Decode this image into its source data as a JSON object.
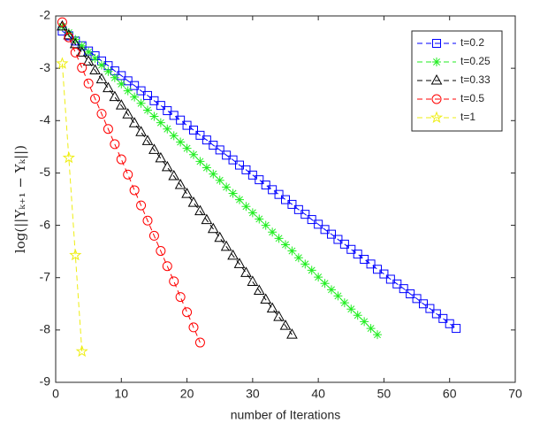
{
  "chart_data": {
    "type": "line",
    "xlabel": "number of Iterations",
    "ylabel": "log(||Yₖ₊₁ − Yₖ||)",
    "xlim": [
      0,
      70
    ],
    "xticks": [
      0,
      10,
      20,
      30,
      40,
      50,
      60,
      70
    ],
    "ylim": [
      -9,
      -2
    ],
    "yticks": [
      -2,
      -3,
      -4,
      -5,
      -6,
      -7,
      -8,
      -9
    ],
    "grid": false,
    "legend": "northeast",
    "series": [
      {
        "name": "t=0.2",
        "color": "#0000ff",
        "marker": "square",
        "x": [
          1,
          2,
          3,
          4,
          5,
          6,
          7,
          8,
          9,
          10,
          11,
          12,
          13,
          14,
          15,
          16,
          17,
          18,
          19,
          20,
          21,
          22,
          23,
          24,
          25,
          26,
          27,
          28,
          29,
          30,
          31,
          32,
          33,
          34,
          35,
          36,
          37,
          38,
          39,
          40,
          41,
          42,
          43,
          44,
          45,
          46,
          47,
          48,
          49,
          50,
          51,
          52,
          53,
          54,
          55,
          56,
          57,
          58,
          59,
          60,
          61
        ],
        "values": [
          -2.29,
          -2.38,
          -2.48,
          -2.57,
          -2.67,
          -2.76,
          -2.86,
          -2.95,
          -3.05,
          -3.14,
          -3.24,
          -3.33,
          -3.43,
          -3.52,
          -3.62,
          -3.71,
          -3.81,
          -3.9,
          -3.99,
          -4.09,
          -4.18,
          -4.28,
          -4.37,
          -4.47,
          -4.56,
          -4.66,
          -4.75,
          -4.85,
          -4.94,
          -5.04,
          -5.13,
          -5.23,
          -5.32,
          -5.41,
          -5.51,
          -5.6,
          -5.7,
          -5.79,
          -5.89,
          -5.98,
          -6.08,
          -6.17,
          -6.27,
          -6.36,
          -6.46,
          -6.55,
          -6.65,
          -6.74,
          -6.84,
          -6.93,
          -7.03,
          -7.12,
          -7.21,
          -7.31,
          -7.4,
          -7.5,
          -7.59,
          -7.69,
          -7.78,
          -7.88,
          -7.97
        ]
      },
      {
        "name": "t=0.25",
        "color": "#22ee22",
        "marker": "star",
        "x": [
          1,
          2,
          3,
          4,
          5,
          6,
          7,
          8,
          9,
          10,
          11,
          12,
          13,
          14,
          15,
          16,
          17,
          18,
          19,
          20,
          21,
          22,
          23,
          24,
          25,
          26,
          27,
          28,
          29,
          30,
          31,
          32,
          33,
          34,
          35,
          36,
          37,
          38,
          39,
          40,
          41,
          42,
          43,
          44,
          45,
          46,
          47,
          48,
          49
        ],
        "values": [
          -2.2,
          -2.32,
          -2.45,
          -2.57,
          -2.69,
          -2.81,
          -2.94,
          -3.06,
          -3.18,
          -3.3,
          -3.43,
          -3.55,
          -3.67,
          -3.8,
          -3.92,
          -4.04,
          -4.16,
          -4.29,
          -4.41,
          -4.53,
          -4.65,
          -4.78,
          -4.9,
          -5.02,
          -5.14,
          -5.27,
          -5.39,
          -5.51,
          -5.64,
          -5.76,
          -5.88,
          -6.0,
          -6.13,
          -6.25,
          -6.37,
          -6.49,
          -6.62,
          -6.74,
          -6.86,
          -6.99,
          -7.11,
          -7.23,
          -7.35,
          -7.48,
          -7.6,
          -7.72,
          -7.84,
          -7.97,
          -8.09
        ]
      },
      {
        "name": "t=0.33",
        "color": "#000000",
        "marker": "triangle",
        "x": [
          1,
          2,
          3,
          4,
          5,
          6,
          7,
          8,
          9,
          10,
          11,
          12,
          13,
          14,
          15,
          16,
          17,
          18,
          19,
          20,
          21,
          22,
          23,
          24,
          25,
          26,
          27,
          28,
          29,
          30,
          31,
          32,
          33,
          34,
          35,
          36
        ],
        "values": [
          -2.2,
          -2.37,
          -2.54,
          -2.7,
          -2.87,
          -3.04,
          -3.21,
          -3.38,
          -3.55,
          -3.71,
          -3.88,
          -4.05,
          -4.22,
          -4.39,
          -4.56,
          -4.72,
          -4.89,
          -5.06,
          -5.23,
          -5.4,
          -5.57,
          -5.73,
          -5.9,
          -6.07,
          -6.24,
          -6.41,
          -6.58,
          -6.74,
          -6.91,
          -7.08,
          -7.25,
          -7.42,
          -7.59,
          -7.75,
          -7.92,
          -8.09
        ]
      },
      {
        "name": "t=0.5",
        "color": "#ff0000",
        "marker": "circle",
        "x": [
          1,
          2,
          3,
          4,
          5,
          6,
          7,
          8,
          9,
          10,
          11,
          12,
          13,
          14,
          15,
          16,
          17,
          18,
          19,
          20,
          21,
          22
        ],
        "values": [
          -2.12,
          -2.41,
          -2.7,
          -2.99,
          -3.29,
          -3.58,
          -3.87,
          -4.16,
          -4.45,
          -4.74,
          -5.03,
          -5.33,
          -5.62,
          -5.91,
          -6.2,
          -6.49,
          -6.78,
          -7.07,
          -7.37,
          -7.66,
          -7.95,
          -8.24
        ]
      },
      {
        "name": "t=1",
        "color": "#eeee11",
        "marker": "pentagram",
        "x": [
          1,
          2,
          3,
          4
        ],
        "values": [
          -2.91,
          -4.71,
          -6.57,
          -8.41
        ]
      }
    ]
  }
}
